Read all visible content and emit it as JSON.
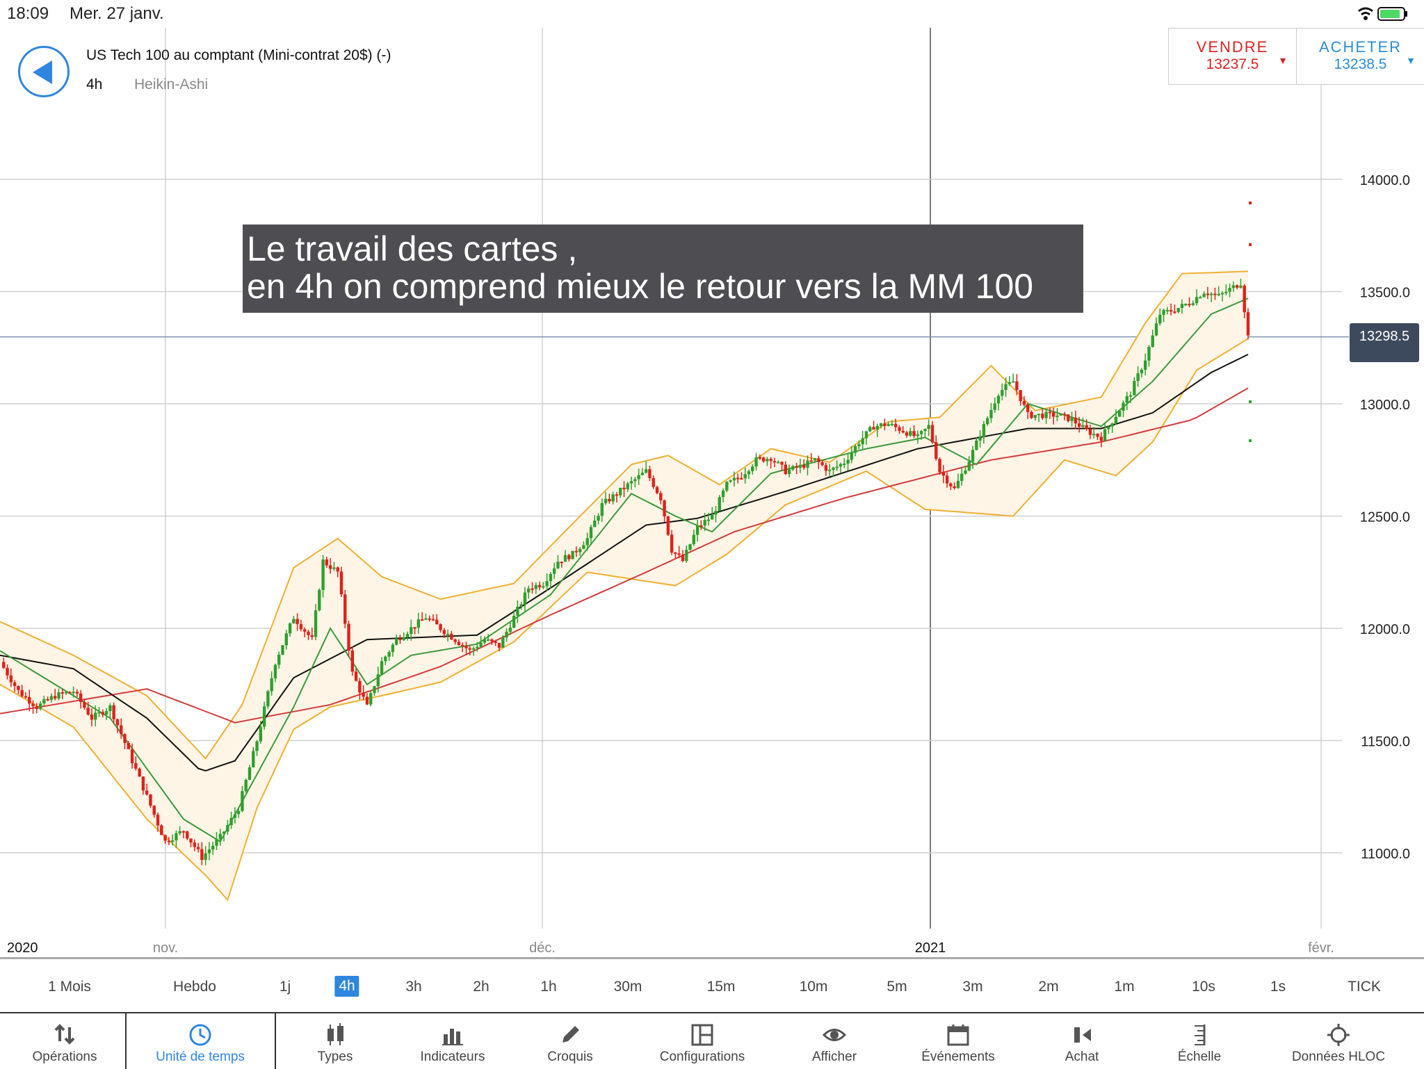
{
  "status_bar": {
    "time": "18:09",
    "date": "Mer. 27 janv."
  },
  "header": {
    "instrument": "US Tech 100 au comptant (Mini-contrat 20$) (-)",
    "timeframe": "4h",
    "chart_type": "Heikin-Ashi"
  },
  "trade": {
    "sell_label": "VENDRE",
    "sell_price": "13237.5",
    "buy_label": "ACHETER",
    "buy_price": "13238.5"
  },
  "annotation": {
    "line1": "Le travail des cartes ,",
    "line2": "en 4h on comprend mieux le retour vers la MM 100"
  },
  "current_price": "13298.5",
  "chart_data": {
    "type": "candlestick",
    "y_ticks": [
      "14000.0",
      "13500.0",
      "13000.0",
      "12500.0",
      "12000.0",
      "11500.0",
      "11000.0"
    ],
    "ylim": [
      10650,
      14550
    ],
    "x_labels": [
      "2020",
      "nov.",
      "déc.",
      "2021",
      "févr."
    ],
    "colors": {
      "up": "#2ea02e",
      "down": "#e0201a",
      "bollinger": "#f0b030",
      "ma_short": "#3a9a3a",
      "ma_mid": "#111111",
      "ma_long": "#d43a3a"
    },
    "price_path": [
      [
        0,
        11850
      ],
      [
        5,
        11720
      ],
      [
        10,
        11650
      ],
      [
        15,
        11700
      ],
      [
        20,
        11720
      ],
      [
        25,
        11600
      ],
      [
        30,
        11650
      ],
      [
        35,
        11450
      ],
      [
        40,
        11250
      ],
      [
        45,
        11050
      ],
      [
        50,
        11100
      ],
      [
        55,
        10980
      ],
      [
        60,
        11070
      ],
      [
        65,
        11200
      ],
      [
        70,
        11500
      ],
      [
        75,
        11850
      ],
      [
        80,
        12050
      ],
      [
        85,
        11950
      ],
      [
        88,
        12300
      ],
      [
        92,
        12250
      ],
      [
        96,
        11800
      ],
      [
        100,
        11650
      ],
      [
        104,
        11850
      ],
      [
        108,
        11950
      ],
      [
        112,
        12000
      ],
      [
        116,
        12050
      ],
      [
        120,
        12000
      ],
      [
        124,
        11950
      ],
      [
        128,
        11900
      ],
      [
        132,
        11950
      ],
      [
        136,
        11920
      ],
      [
        140,
        12050
      ],
      [
        144,
        12180
      ],
      [
        148,
        12200
      ],
      [
        152,
        12300
      ],
      [
        156,
        12330
      ],
      [
        160,
        12400
      ],
      [
        164,
        12550
      ],
      [
        168,
        12600
      ],
      [
        172,
        12650
      ],
      [
        176,
        12700
      ],
      [
        180,
        12580
      ],
      [
        183,
        12350
      ],
      [
        186,
        12300
      ],
      [
        190,
        12450
      ],
      [
        194,
        12500
      ],
      [
        198,
        12640
      ],
      [
        202,
        12680
      ],
      [
        206,
        12750
      ],
      [
        210,
        12760
      ],
      [
        214,
        12700
      ],
      [
        218,
        12720
      ],
      [
        222,
        12750
      ],
      [
        226,
        12700
      ],
      [
        230,
        12740
      ],
      [
        234,
        12830
      ],
      [
        238,
        12900
      ],
      [
        242,
        12910
      ],
      [
        246,
        12880
      ],
      [
        250,
        12850
      ],
      [
        253,
        12900
      ],
      [
        256,
        12700
      ],
      [
        260,
        12620
      ],
      [
        264,
        12750
      ],
      [
        268,
        12900
      ],
      [
        272,
        13050
      ],
      [
        276,
        13100
      ],
      [
        280,
        12950
      ],
      [
        284,
        12950
      ],
      [
        288,
        12950
      ],
      [
        292,
        12930
      ],
      [
        296,
        12880
      ],
      [
        300,
        12850
      ],
      [
        304,
        12950
      ],
      [
        308,
        13050
      ],
      [
        312,
        13200
      ],
      [
        316,
        13400
      ],
      [
        320,
        13420
      ],
      [
        324,
        13450
      ],
      [
        328,
        13500
      ],
      [
        332,
        13480
      ],
      [
        336,
        13520
      ],
      [
        338,
        13540
      ],
      [
        340,
        13300
      ]
    ],
    "bollinger_upper": [
      [
        0,
        12030
      ],
      [
        20,
        11880
      ],
      [
        40,
        11700
      ],
      [
        56,
        11420
      ],
      [
        66,
        11660
      ],
      [
        80,
        12270
      ],
      [
        92,
        12400
      ],
      [
        104,
        12230
      ],
      [
        120,
        12130
      ],
      [
        140,
        12200
      ],
      [
        152,
        12400
      ],
      [
        172,
        12730
      ],
      [
        182,
        12770
      ],
      [
        196,
        12640
      ],
      [
        210,
        12800
      ],
      [
        226,
        12740
      ],
      [
        242,
        12920
      ],
      [
        256,
        12940
      ],
      [
        270,
        13170
      ],
      [
        282,
        12970
      ],
      [
        300,
        13030
      ],
      [
        312,
        13360
      ],
      [
        322,
        13580
      ],
      [
        340,
        13590
      ]
    ],
    "bollinger_lower": [
      [
        0,
        11750
      ],
      [
        20,
        11560
      ],
      [
        40,
        11150
      ],
      [
        56,
        10900
      ],
      [
        62,
        10790
      ],
      [
        70,
        11200
      ],
      [
        80,
        11550
      ],
      [
        90,
        11650
      ],
      [
        104,
        11700
      ],
      [
        120,
        11760
      ],
      [
        140,
        11940
      ],
      [
        160,
        12250
      ],
      [
        184,
        12190
      ],
      [
        198,
        12330
      ],
      [
        214,
        12550
      ],
      [
        236,
        12700
      ],
      [
        252,
        12530
      ],
      [
        276,
        12500
      ],
      [
        290,
        12750
      ],
      [
        304,
        12680
      ],
      [
        314,
        12830
      ],
      [
        326,
        13150
      ],
      [
        340,
        13290
      ]
    ],
    "ma_short": [
      [
        0,
        11900
      ],
      [
        30,
        11600
      ],
      [
        50,
        11150
      ],
      [
        60,
        11050
      ],
      [
        80,
        11650
      ],
      [
        90,
        12000
      ],
      [
        100,
        11750
      ],
      [
        112,
        11880
      ],
      [
        130,
        11930
      ],
      [
        150,
        12150
      ],
      [
        172,
        12600
      ],
      [
        184,
        12500
      ],
      [
        194,
        12430
      ],
      [
        210,
        12690
      ],
      [
        236,
        12800
      ],
      [
        252,
        12850
      ],
      [
        266,
        12730
      ],
      [
        280,
        13000
      ],
      [
        300,
        12900
      ],
      [
        314,
        13100
      ],
      [
        330,
        13400
      ],
      [
        340,
        13470
      ]
    ],
    "ma_mid": [
      [
        0,
        11880
      ],
      [
        20,
        11820
      ],
      [
        40,
        11600
      ],
      [
        55,
        11360
      ],
      [
        64,
        11410
      ],
      [
        80,
        11780
      ],
      [
        100,
        11950
      ],
      [
        130,
        11970
      ],
      [
        150,
        12180
      ],
      [
        176,
        12460
      ],
      [
        190,
        12490
      ],
      [
        214,
        12610
      ],
      [
        250,
        12800
      ],
      [
        280,
        12890
      ],
      [
        300,
        12890
      ],
      [
        314,
        12960
      ],
      [
        330,
        13140
      ],
      [
        340,
        13220
      ]
    ],
    "ma_long": [
      [
        0,
        11620
      ],
      [
        40,
        11730
      ],
      [
        64,
        11580
      ],
      [
        90,
        11660
      ],
      [
        120,
        11830
      ],
      [
        150,
        12060
      ],
      [
        176,
        12250
      ],
      [
        200,
        12430
      ],
      [
        230,
        12580
      ],
      [
        270,
        12750
      ],
      [
        300,
        12830
      ],
      [
        325,
        12930
      ],
      [
        340,
        13070
      ]
    ]
  },
  "timeframes": [
    "1 Mois",
    "Hebdo",
    "1j",
    "4h",
    "3h",
    "2h",
    "1h",
    "30m",
    "15m",
    "10m",
    "5m",
    "3m",
    "2m",
    "1m",
    "10s",
    "1s",
    "TICK"
  ],
  "active_timeframe": "4h",
  "toolbar": [
    {
      "label": "Opérations",
      "icon": "operations-icon"
    },
    {
      "label": "Unité de temps",
      "icon": "clock-icon"
    },
    {
      "label": "Types",
      "icon": "candle-types-icon"
    },
    {
      "label": "Indicateurs",
      "icon": "bar-indicators-icon"
    },
    {
      "label": "Croquis",
      "icon": "pencil-icon"
    },
    {
      "label": "Configurations",
      "icon": "layout-icon"
    },
    {
      "label": "Afficher",
      "icon": "eye-icon"
    },
    {
      "label": "Événements",
      "icon": "calendar-icon"
    },
    {
      "label": "Achat",
      "icon": "trade-icon"
    },
    {
      "label": "Échelle",
      "icon": "ruler-icon"
    },
    {
      "label": "Données HLOC",
      "icon": "crosshair-icon"
    }
  ],
  "active_tool": "Unité de temps"
}
